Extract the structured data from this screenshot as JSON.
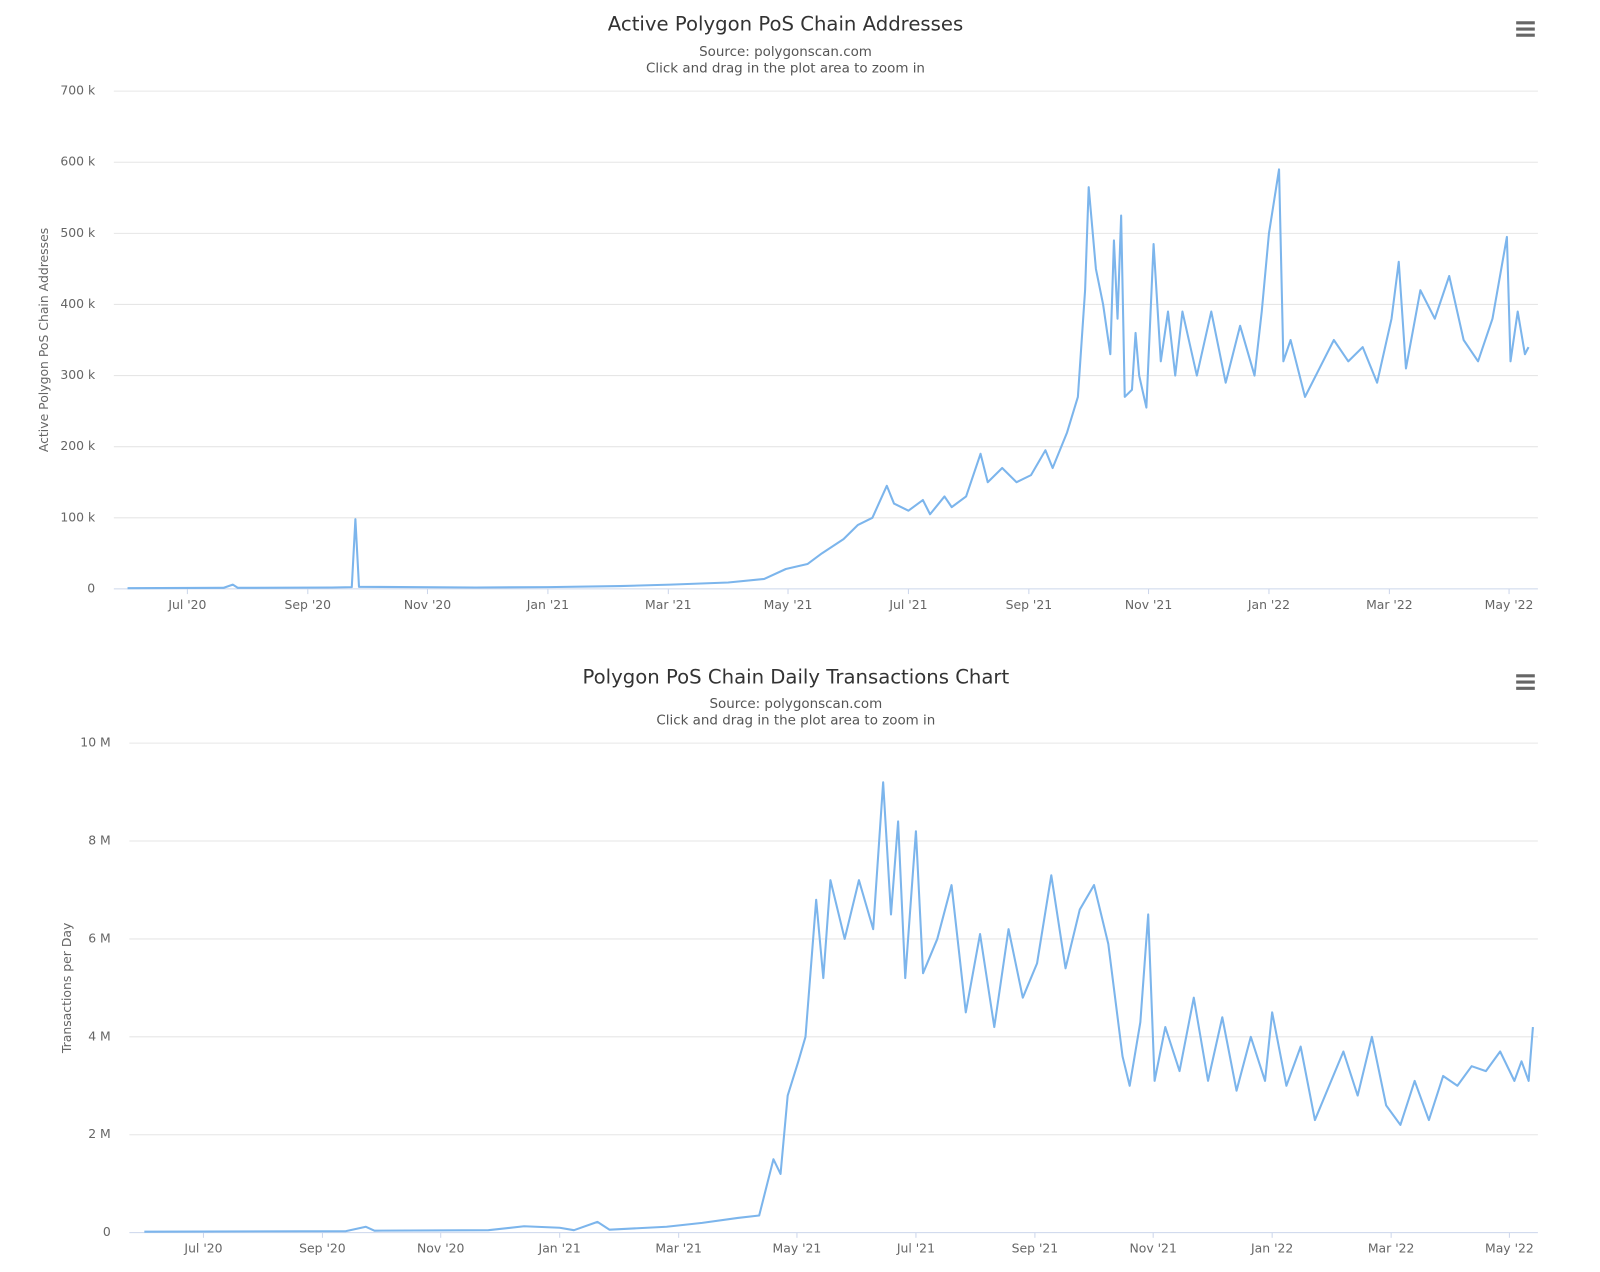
{
  "chart_data": [
    {
      "type": "line",
      "title": "Active Polygon PoS Chain Addresses",
      "subtitle": "Source: polygonscan.com",
      "note": "Click and drag in the plot area to zoom in",
      "y_label": "Active Polygon PoS Chain Addresses",
      "color": "#7cb5ec",
      "grid": true,
      "xlim": [
        2020.398,
        2022.373
      ],
      "xticks": [
        {
          "value": 2020.5,
          "label": "Jul '20"
        },
        {
          "value": 2020.667,
          "label": "Sep '20"
        },
        {
          "value": 2020.833,
          "label": "Nov '20"
        },
        {
          "value": 2021.0,
          "label": "Jan '21"
        },
        {
          "value": 2021.167,
          "label": "Mar '21"
        },
        {
          "value": 2021.333,
          "label": "May '21"
        },
        {
          "value": 2021.5,
          "label": "Jul '21"
        },
        {
          "value": 2021.667,
          "label": "Sep '21"
        },
        {
          "value": 2021.833,
          "label": "Nov '21"
        },
        {
          "value": 2022.0,
          "label": "Jan '22"
        },
        {
          "value": 2022.167,
          "label": "Mar '22"
        },
        {
          "value": 2022.333,
          "label": "May '22"
        }
      ],
      "ylim": [
        0,
        700000
      ],
      "yticks": [
        0,
        {
          "value": 100000,
          "label": "100 k"
        },
        {
          "value": 200000,
          "label": "200 k"
        },
        {
          "value": 300000,
          "label": "300 k"
        },
        {
          "value": 400000,
          "label": "400 k"
        },
        {
          "value": 500000,
          "label": "500 k"
        },
        {
          "value": 600000,
          "label": "600 k"
        },
        {
          "value": 700000,
          "label": "700 k"
        }
      ],
      "x": [
        2020.417,
        2020.55,
        2020.563,
        2020.57,
        2020.7,
        2020.728,
        2020.733,
        2020.738,
        2020.9,
        2021.0,
        2021.1,
        2021.17,
        2021.25,
        2021.3,
        2021.33,
        2021.36,
        2021.38,
        2021.41,
        2021.43,
        2021.45,
        2021.47,
        2021.48,
        2021.5,
        2021.52,
        2021.53,
        2021.55,
        2021.56,
        2021.58,
        2021.6,
        2021.61,
        2021.63,
        2021.65,
        2021.67,
        2021.69,
        2021.7,
        2021.72,
        2021.735,
        2021.745,
        2021.75,
        2021.76,
        2021.77,
        2021.78,
        2021.785,
        2021.79,
        2021.795,
        2021.8,
        2021.81,
        2021.815,
        2021.82,
        2021.83,
        2021.84,
        2021.85,
        2021.86,
        2021.87,
        2021.88,
        2021.9,
        2021.92,
        2021.94,
        2021.96,
        2021.98,
        2021.99,
        2022.0,
        2022.014,
        2022.02,
        2022.03,
        2022.05,
        2022.07,
        2022.09,
        2022.11,
        2022.13,
        2022.15,
        2022.17,
        2022.18,
        2022.19,
        2022.21,
        2022.23,
        2022.25,
        2022.27,
        2022.29,
        2022.31,
        2022.33,
        2022.335,
        2022.345,
        2022.355,
        2022.36
      ],
      "values": [
        1000,
        1500,
        6000,
        1500,
        2000,
        2500,
        98000,
        3000,
        2000,
        2500,
        4000,
        6000,
        9000,
        14000,
        28000,
        35000,
        50000,
        70000,
        90000,
        100000,
        145000,
        120000,
        110000,
        125000,
        105000,
        130000,
        115000,
        130000,
        190000,
        150000,
        170000,
        150000,
        160000,
        195000,
        170000,
        220000,
        270000,
        420000,
        565000,
        450000,
        400000,
        330000,
        490000,
        380000,
        525000,
        270000,
        280000,
        360000,
        300000,
        255000,
        485000,
        320000,
        390000,
        300000,
        390000,
        300000,
        390000,
        290000,
        370000,
        300000,
        390000,
        500000,
        590000,
        320000,
        350000,
        270000,
        310000,
        350000,
        320000,
        340000,
        290000,
        380000,
        460000,
        310000,
        420000,
        380000,
        440000,
        350000,
        320000,
        380000,
        495000,
        320000,
        390000,
        330000,
        340000
      ]
    },
    {
      "type": "line",
      "title": "Polygon PoS Chain Daily Transactions Chart",
      "subtitle": "Source: polygonscan.com",
      "note": "Click and drag in the plot area to zoom in",
      "y_label": "Transactions per Day",
      "color": "#7cb5ec",
      "grid": true,
      "xlim": [
        2020.396,
        2022.373
      ],
      "xticks": [
        {
          "value": 2020.5,
          "label": "Jul '20"
        },
        {
          "value": 2020.667,
          "label": "Sep '20"
        },
        {
          "value": 2020.833,
          "label": "Nov '20"
        },
        {
          "value": 2021.0,
          "label": "Jan '21"
        },
        {
          "value": 2021.167,
          "label": "Mar '21"
        },
        {
          "value": 2021.333,
          "label": "May '21"
        },
        {
          "value": 2021.5,
          "label": "Jul '21"
        },
        {
          "value": 2021.667,
          "label": "Sep '21"
        },
        {
          "value": 2021.833,
          "label": "Nov '21"
        },
        {
          "value": 2022.0,
          "label": "Jan '22"
        },
        {
          "value": 2022.167,
          "label": "Mar '22"
        },
        {
          "value": 2022.333,
          "label": "May '22"
        }
      ],
      "ylim": [
        0,
        10000000
      ],
      "yticks": [
        0,
        {
          "value": 2000000,
          "label": "2 M"
        },
        {
          "value": 4000000,
          "label": "4 M"
        },
        {
          "value": 6000000,
          "label": "6 M"
        },
        {
          "value": 8000000,
          "label": "8 M"
        },
        {
          "value": 10000000,
          "label": "10 M"
        }
      ],
      "x": [
        2020.417,
        2020.7,
        2020.728,
        2020.74,
        2020.9,
        2020.95,
        2021.0,
        2021.02,
        2021.053,
        2021.07,
        2021.15,
        2021.2,
        2021.25,
        2021.28,
        2021.3,
        2021.31,
        2021.32,
        2021.335,
        2021.345,
        2021.36,
        2021.37,
        2021.38,
        2021.4,
        2021.42,
        2021.44,
        2021.454,
        2021.465,
        2021.475,
        2021.485,
        2021.5,
        2021.51,
        2021.53,
        2021.55,
        2021.57,
        2021.59,
        2021.61,
        2021.63,
        2021.65,
        2021.67,
        2021.69,
        2021.71,
        2021.73,
        2021.75,
        2021.77,
        2021.79,
        2021.8,
        2021.815,
        2021.826,
        2021.835,
        2021.85,
        2021.87,
        2021.89,
        2021.91,
        2021.93,
        2021.95,
        2021.97,
        2021.99,
        2022.0,
        2022.02,
        2022.04,
        2022.06,
        2022.08,
        2022.1,
        2022.12,
        2022.14,
        2022.16,
        2022.18,
        2022.2,
        2022.22,
        2022.24,
        2022.26,
        2022.28,
        2022.3,
        2022.32,
        2022.34,
        2022.35,
        2022.36,
        2022.366
      ],
      "values": [
        20000,
        30000,
        120000,
        40000,
        50000,
        130000,
        100000,
        50000,
        220000,
        60000,
        120000,
        200000,
        300000,
        350000,
        1500000,
        1200000,
        2800000,
        3500000,
        4000000,
        6800000,
        5200000,
        7200000,
        6000000,
        7200000,
        6200000,
        9200000,
        6500000,
        8400000,
        5200000,
        8200000,
        5300000,
        6000000,
        7100000,
        4500000,
        6100000,
        4200000,
        6200000,
        4800000,
        5500000,
        7300000,
        5400000,
        6600000,
        7100000,
        5900000,
        3600000,
        3000000,
        4300000,
        6500000,
        3100000,
        4200000,
        3300000,
        4800000,
        3100000,
        4400000,
        2900000,
        4000000,
        3100000,
        4500000,
        3000000,
        3800000,
        2300000,
        3000000,
        3700000,
        2800000,
        4000000,
        2600000,
        2200000,
        3100000,
        2300000,
        3200000,
        3000000,
        3400000,
        3300000,
        3700000,
        3100000,
        3500000,
        3100000,
        4200000
      ]
    }
  ]
}
